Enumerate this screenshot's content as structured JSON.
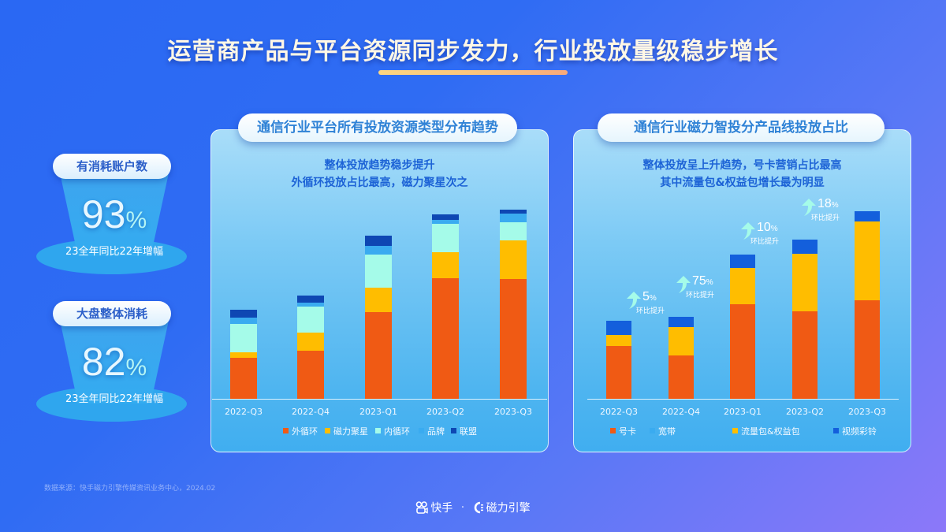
{
  "header": {
    "title": "运营商产品与平台资源同步发力，行业投放量级稳步增长"
  },
  "kpis": [
    {
      "label": "有消耗账户数",
      "value": "93",
      "unit": "%",
      "caption": "23全年同比22年增幅"
    },
    {
      "label": "大盘整体消耗",
      "value": "82",
      "unit": "%",
      "caption": "23全年同比22年增幅"
    }
  ],
  "left_chart": {
    "pill_title": "通信行业平台所有投放资源类型分布趋势",
    "desc_line1": "整体投放趋势稳步提升",
    "desc_line2": "外循环投放占比最高，磁力聚星次之"
  },
  "right_chart": {
    "pill_title": "通信行业磁力智投分产品线投放占比",
    "desc_line1": "整体投放呈上升趋势，号卡营销占比最高",
    "desc_line2": "其中流量包&权益包增长最为明显",
    "annotations": [
      {
        "value": "5",
        "unit": "%",
        "label": "环比提升"
      },
      {
        "value": "75",
        "unit": "%",
        "label": "环比提升"
      },
      {
        "value": "10",
        "unit": "%",
        "label": "环比提升"
      },
      {
        "value": "18",
        "unit": "%",
        "label": "环比提升"
      }
    ]
  },
  "colors": {
    "orange": "#f05a14",
    "yellow": "#ffbd00",
    "cyan": "#a5fbe9",
    "light_blue": "#3aabf0",
    "dark_blue": "#0e47b3",
    "royal_blue": "#135fdc",
    "bg_start": "#2a68f3",
    "bg_end": "#8c78f9",
    "title_underline": "#fdd681"
  },
  "chart_data": [
    {
      "type": "bar",
      "stacked": true,
      "title": "通信行业平台所有投放资源类型分布趋势",
      "xlabel": "",
      "ylabel": "",
      "grid": false,
      "legend_position": "bottom",
      "categories": [
        "2022-Q3",
        "2022-Q4",
        "2023-Q1",
        "2023-Q2",
        "2023-Q3"
      ],
      "series": [
        {
          "name": "外循环",
          "color": "#f05a14",
          "values": [
            52,
            61,
            110,
            153,
            152
          ]
        },
        {
          "name": "磁力聚星",
          "color": "#ffbd00",
          "values": [
            7,
            23,
            31,
            33,
            49
          ]
        },
        {
          "name": "内循环",
          "color": "#a5fbe9",
          "values": [
            36,
            33,
            42,
            36,
            23
          ]
        },
        {
          "name": "品牌",
          "color": "#3aabf0",
          "values": [
            8,
            5,
            11,
            5,
            11
          ]
        },
        {
          "name": "联盟",
          "color": "#0e47b3",
          "values": [
            10,
            9,
            13,
            7,
            5
          ]
        }
      ],
      "units": "relative pixel height (no axis shown)"
    },
    {
      "type": "bar",
      "stacked": true,
      "title": "通信行业磁力智投分产品线投放占比",
      "xlabel": "",
      "ylabel": "",
      "grid": false,
      "legend_position": "bottom",
      "categories": [
        "2022-Q3",
        "2022-Q4",
        "2023-Q1",
        "2023-Q2",
        "2023-Q3"
      ],
      "series": [
        {
          "name": "号卡",
          "color": "#f05a14",
          "values": [
            67,
            55,
            120,
            111,
            125
          ]
        },
        {
          "name": "宽带",
          "color": "#3aabf0",
          "values": [
            0,
            0,
            0,
            0,
            0
          ]
        },
        {
          "name": "流量包&权益包",
          "color": "#ffbd00",
          "values": [
            14,
            36,
            46,
            73,
            100
          ]
        },
        {
          "name": "视频彩铃",
          "color": "#135fdc",
          "values": [
            18,
            13,
            17,
            18,
            13
          ]
        }
      ],
      "annotations": [
        {
          "between": [
            "2022-Q3",
            "2022-Q4"
          ],
          "text": "5% 环比提升"
        },
        {
          "between": [
            "2022-Q4",
            "2023-Q1"
          ],
          "text": "75% 环比提升"
        },
        {
          "between": [
            "2023-Q1",
            "2023-Q2"
          ],
          "text": "10% 环比提升"
        },
        {
          "between": [
            "2023-Q2",
            "2023-Q3"
          ],
          "text": "18% 环比提升"
        }
      ],
      "units": "relative pixel height (no axis shown)"
    }
  ],
  "footer": {
    "source": "数据来源：快手磁力引擎传媒资讯业务中心，2024.02",
    "brand1": "快手",
    "separator": "·",
    "brand2": "磁力引擎"
  }
}
